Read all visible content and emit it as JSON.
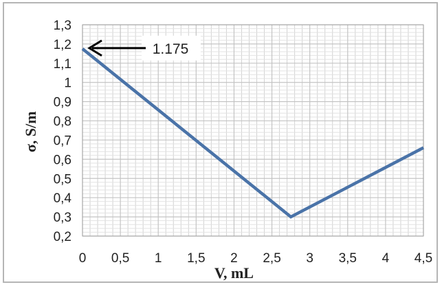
{
  "chart_data": {
    "type": "line",
    "xlabel": "V, mL",
    "ylabel": "σ, S/m",
    "xlim": [
      0,
      4.5
    ],
    "ylim": [
      0.2,
      1.3
    ],
    "grid": true,
    "x_ticks": [
      "0",
      "0,5",
      "1",
      "1,5",
      "2",
      "2,5",
      "3",
      "3,5",
      "4",
      "4,5"
    ],
    "y_ticks": [
      "0,2",
      "0,3",
      "0,4",
      "0,5",
      "0,6",
      "0,7",
      "0,8",
      "0,9",
      "1",
      "1,1",
      "1,2",
      "1,3"
    ],
    "series": [
      {
        "x": [
          0,
          2.75,
          4.5
        ],
        "y": [
          1.175,
          0.3,
          0.66
        ]
      }
    ],
    "annotations": [
      {
        "text": "1.175",
        "x": 0,
        "y": 1.175
      }
    ],
    "colors": {
      "line": "#4a73a8",
      "grid": "#d2d2d2",
      "frame": "#b5b5b5",
      "arrow": "#000000"
    }
  }
}
